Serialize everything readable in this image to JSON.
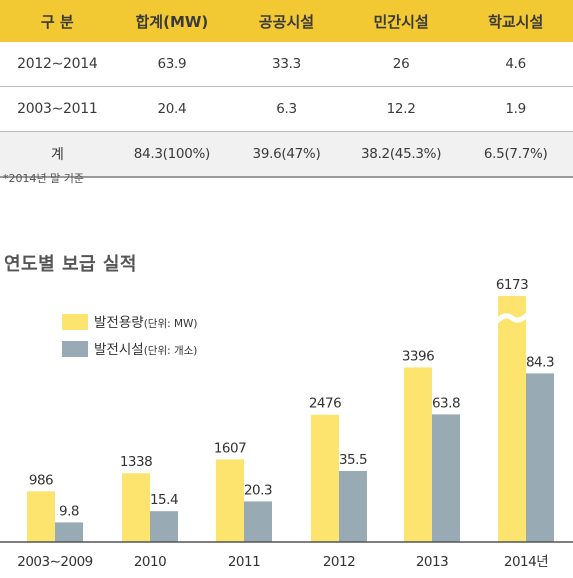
{
  "table": {
    "headers": [
      "구 분",
      "합계(MW)",
      "공공시설",
      "민간시설",
      "학교시설"
    ],
    "rows": [
      [
        "2012∼2014",
        "63.9",
        "33.3",
        "26",
        "4.6"
      ],
      [
        "2003∼2011",
        "20.4",
        "6.3",
        "12.2",
        "1.9"
      ]
    ],
    "total": [
      "계",
      "84.3(100%)",
      "39.6(47%)",
      "38.2(45.3%)",
      "6.5(7.7%)"
    ]
  },
  "note": "*2014년 말 기준",
  "chart_title": "연도별 보급 실적",
  "chart_data": {
    "type": "bar",
    "categories": [
      "2003∼2009",
      "2010",
      "2011",
      "2012",
      "2013",
      "2014년"
    ],
    "series": [
      {
        "name": "발전용량",
        "unit": "(단위: MW)",
        "color": "#fde46e",
        "values": [
          986,
          1338,
          1607,
          2476,
          3396,
          6173
        ],
        "labels": [
          "986",
          "1338",
          "1607",
          "2476",
          "3396",
          "6173"
        ]
      },
      {
        "name": "발전시설",
        "unit": "(단위: 개소)",
        "color": "#98aab4",
        "values": [
          9.8,
          15.4,
          20.3,
          35.5,
          63.8,
          84.3
        ],
        "labels": [
          "9.8",
          "15.4",
          "20.3",
          "35.5",
          "63.8",
          "84.3"
        ]
      }
    ],
    "axis_break": "last category capacity bar is broken (truncated)",
    "legend_position": "top-left",
    "grid": false
  }
}
